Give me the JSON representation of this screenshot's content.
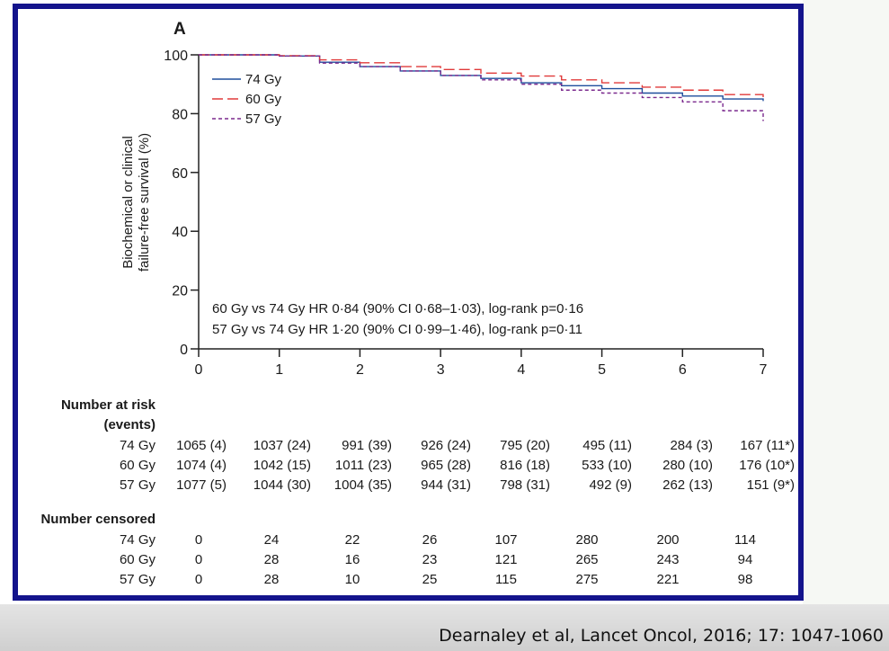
{
  "citation": "Dearnaley et al, Lancet Oncol, 2016; 17: 1047-1060",
  "colors": {
    "frame": "#14148c",
    "gy74": "#1f4e9c",
    "gy60": "#e03a3a",
    "gy57": "#7b2a8e"
  },
  "chart_data": {
    "type": "line",
    "panel_label": "A",
    "ylabel_line1": "Biochemical or clinical",
    "ylabel_line2": "failure-free survival (%)",
    "xlim": [
      0,
      7
    ],
    "ylim": [
      0,
      100
    ],
    "xticks": [
      "0",
      "1",
      "2",
      "3",
      "4",
      "5",
      "6",
      "7"
    ],
    "yticks": [
      "0",
      "20",
      "40",
      "60",
      "80",
      "100"
    ],
    "legend": [
      "74 Gy",
      "60 Gy",
      "57 Gy"
    ],
    "annotations": [
      "60 Gy vs 74 Gy HR 0·84 (90% CI 0·68–1·03), log-rank p=0·16",
      "57 Gy vs 74 Gy HR 1·20 (90% CI 0·99–1·46), log-rank p=0·11"
    ],
    "series": [
      {
        "name": "74 Gy",
        "points": [
          [
            0,
            100
          ],
          [
            0.5,
            100
          ],
          [
            1,
            99.6
          ],
          [
            1.5,
            97.5
          ],
          [
            2,
            96
          ],
          [
            2.5,
            94.5
          ],
          [
            3,
            93
          ],
          [
            3.5,
            92
          ],
          [
            4,
            90.5
          ],
          [
            4.5,
            89.5
          ],
          [
            5,
            88.5
          ],
          [
            5.5,
            87
          ],
          [
            6,
            86
          ],
          [
            6.5,
            85
          ],
          [
            7,
            84.3
          ]
        ]
      },
      {
        "name": "60 Gy",
        "points": [
          [
            0,
            100
          ],
          [
            0.5,
            100
          ],
          [
            1,
            99.7
          ],
          [
            1.5,
            98.3
          ],
          [
            2,
            97.3
          ],
          [
            2.5,
            96
          ],
          [
            3,
            95
          ],
          [
            3.5,
            93.8
          ],
          [
            4,
            92.8
          ],
          [
            4.5,
            91.5
          ],
          [
            5,
            90.5
          ],
          [
            5.5,
            89
          ],
          [
            6,
            88
          ],
          [
            6.5,
            86.5
          ],
          [
            7,
            84.4
          ]
        ]
      },
      {
        "name": "57 Gy",
        "points": [
          [
            0,
            100
          ],
          [
            0.5,
            100
          ],
          [
            1,
            99.6
          ],
          [
            1.5,
            97.2
          ],
          [
            2,
            96
          ],
          [
            2.5,
            94.5
          ],
          [
            3,
            93
          ],
          [
            3.5,
            91.5
          ],
          [
            4,
            90
          ],
          [
            4.5,
            88
          ],
          [
            5,
            87
          ],
          [
            5.5,
            85.5
          ],
          [
            6,
            84
          ],
          [
            6.5,
            81
          ],
          [
            7,
            77.5
          ]
        ]
      }
    ],
    "at_risk": {
      "title_line1": "Number at risk",
      "title_line2": "(events)",
      "rows": [
        {
          "label": "74 Gy",
          "values": [
            "1065 (4)",
            "1037 (24)",
            "991 (39)",
            "926 (24)",
            "795 (20)",
            "495 (11)",
            "284 (3)",
            "167 (11*)"
          ]
        },
        {
          "label": "60 Gy",
          "values": [
            "1074 (4)",
            "1042 (15)",
            "1011 (23)",
            "965 (28)",
            "816 (18)",
            "533 (10)",
            "280 (10)",
            "176 (10*)"
          ]
        },
        {
          "label": "57 Gy",
          "values": [
            "1077 (5)",
            "1044 (30)",
            "1004 (35)",
            "944 (31)",
            "798 (31)",
            "492 (9)",
            "262 (13)",
            "151 (9*)"
          ]
        }
      ]
    },
    "censored": {
      "title": "Number censored",
      "rows": [
        {
          "label": "74 Gy",
          "values": [
            "0",
            "24",
            "22",
            "26",
            "107",
            "280",
            "200",
            "114"
          ]
        },
        {
          "label": "60 Gy",
          "values": [
            "0",
            "28",
            "16",
            "23",
            "121",
            "265",
            "243",
            "94"
          ]
        },
        {
          "label": "57 Gy",
          "values": [
            "0",
            "28",
            "10",
            "25",
            "115",
            "275",
            "221",
            "98"
          ]
        }
      ]
    }
  }
}
